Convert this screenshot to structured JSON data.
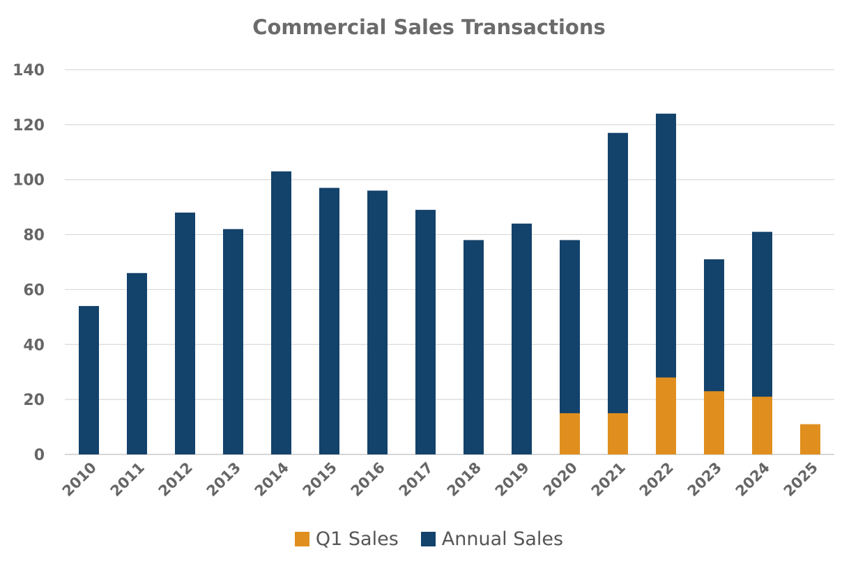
{
  "chart_data": {
    "type": "bar",
    "title": "Commercial Sales Transactions",
    "categories": [
      "2010",
      "2011",
      "2012",
      "2013",
      "2014",
      "2015",
      "2016",
      "2017",
      "2018",
      "2019",
      "2020",
      "2021",
      "2022",
      "2023",
      "2024",
      "2025"
    ],
    "series": [
      {
        "name": "Annual Sales",
        "color": "#13426b",
        "values": [
          54,
          66,
          88,
          82,
          103,
          97,
          96,
          89,
          78,
          84,
          78,
          117,
          124,
          71,
          81,
          null
        ]
      },
      {
        "name": "Q1 Sales",
        "color": "#e08f1e",
        "values": [
          null,
          null,
          null,
          null,
          null,
          null,
          null,
          null,
          null,
          null,
          15,
          15,
          28,
          23,
          21,
          11
        ]
      }
    ],
    "legend_order": [
      "Q1 Sales",
      "Annual Sales"
    ],
    "overlap": true,
    "ylim": [
      0,
      140
    ],
    "yticks": [
      0,
      20,
      40,
      60,
      80,
      100,
      120,
      140
    ],
    "grid": true,
    "legend_position": "bottom",
    "xlabel": "",
    "ylabel": ""
  }
}
